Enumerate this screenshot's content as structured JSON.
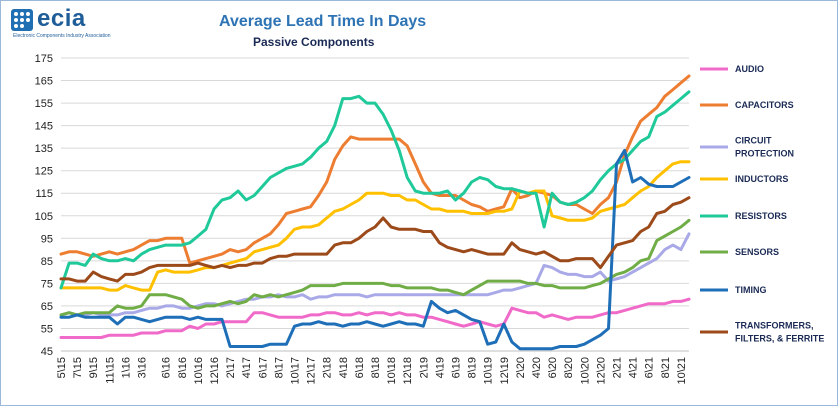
{
  "logo": {
    "name": "ecia",
    "tagline": "Electronic Components Industry Association"
  },
  "chart_data": {
    "type": "line",
    "title": "Average Lead Time In Days",
    "subtitle": "Passive Components",
    "xlabel": "",
    "ylabel": "",
    "ylim": [
      45,
      175
    ],
    "yticks": [
      45,
      55,
      65,
      75,
      85,
      95,
      105,
      115,
      125,
      135,
      145,
      155,
      165,
      175
    ],
    "grid": true,
    "legend": "right",
    "categories": [
      "5\\15",
      "6\\15",
      "7\\15",
      "8\\15",
      "9\\15",
      "10\\15",
      "11\\15",
      "12\\15",
      "1\\16",
      "2\\16",
      "3\\16",
      "4\\16",
      "5\\16",
      "6\\16",
      "7\\16",
      "8\\16",
      "9\\16",
      "10\\16",
      "11\\16",
      "12\\16",
      "1\\17",
      "2\\17",
      "3\\17",
      "4\\17",
      "5\\17",
      "6\\17",
      "7\\17",
      "8\\17",
      "9\\17",
      "10\\17",
      "11\\17",
      "12\\17",
      "1\\18",
      "2\\18",
      "3\\18",
      "4\\18",
      "5\\18",
      "6\\18",
      "7\\18",
      "8\\18",
      "9\\18",
      "10\\18",
      "11\\18",
      "12\\18",
      "1\\19",
      "2\\19",
      "3\\19",
      "4\\19",
      "5\\19",
      "6\\19",
      "7\\19",
      "8\\19",
      "9\\19",
      "10\\19",
      "11\\19",
      "12\\19",
      "1\\20",
      "2\\20",
      "3\\20",
      "4\\20",
      "5\\20",
      "6\\20",
      "7\\20",
      "8\\20",
      "9\\20",
      "10\\20",
      "11\\20",
      "12\\20",
      "1\\21",
      "2\\21",
      "3\\21",
      "4\\21",
      "5\\21",
      "6\\21",
      "7\\21",
      "8\\21",
      "9\\21",
      "10\\21",
      "11\\21"
    ],
    "xtick_labels": [
      "5\\15",
      "7\\15",
      "9\\15",
      "11\\15",
      "1\\16",
      "3\\16",
      "6\\16",
      "8\\16",
      "10\\16",
      "12\\16",
      "2\\17",
      "4\\17",
      "6\\17",
      "8\\17",
      "10\\17",
      "12\\17",
      "2\\18",
      "4\\18",
      "6\\18",
      "8\\18",
      "10\\18",
      "12\\18",
      "2\\19",
      "4\\19",
      "6\\19",
      "8\\19",
      "10\\19",
      "12\\19",
      "2\\20",
      "4\\20",
      "6\\20",
      "8\\20",
      "10\\20",
      "12\\20",
      "2\\21",
      "4\\21",
      "6\\21",
      "8\\21",
      "10\\21"
    ],
    "series": [
      {
        "name": "AUDIO",
        "color": "#f06ac9",
        "values": [
          51,
          51,
          51,
          51,
          51,
          51,
          52,
          52,
          52,
          52,
          53,
          53,
          53,
          54,
          54,
          54,
          56,
          55,
          57,
          57,
          58,
          58,
          58,
          58,
          62,
          62,
          61,
          60,
          60,
          60,
          60,
          61,
          61,
          62,
          62,
          61,
          61,
          62,
          61,
          62,
          62,
          61,
          62,
          61,
          61,
          60,
          60,
          59,
          58,
          57,
          56,
          57,
          58,
          57,
          56,
          57,
          64,
          63,
          62,
          62,
          60,
          61,
          60,
          59,
          60,
          60,
          60,
          61,
          62,
          62,
          63,
          64,
          65,
          66,
          66,
          66,
          67,
          67,
          68
        ]
      },
      {
        "name": "CAPACITORS",
        "color": "#ed7d31",
        "values": [
          88,
          89,
          89,
          88,
          87,
          88,
          89,
          88,
          89,
          90,
          92,
          94,
          94,
          95,
          95,
          95,
          84,
          85,
          86,
          87,
          88,
          90,
          89,
          90,
          93,
          95,
          97,
          101,
          106,
          107,
          108,
          109,
          114,
          120,
          130,
          136,
          140,
          139,
          139,
          139,
          139,
          139,
          139,
          136,
          128,
          120,
          115,
          114,
          114,
          114,
          112,
          110,
          109,
          107,
          108,
          109,
          117,
          113,
          114,
          116,
          115,
          114,
          111,
          110,
          110,
          108,
          106,
          110,
          113,
          120,
          132,
          140,
          147,
          150,
          153,
          158,
          161,
          164,
          167
        ]
      },
      {
        "name": "CIRCUIT PROTECTION",
        "color": "#a9a9e8",
        "values": [
          61,
          62,
          61,
          61,
          62,
          61,
          61,
          61,
          62,
          62,
          63,
          64,
          64,
          65,
          65,
          64,
          64,
          65,
          66,
          66,
          65,
          66,
          67,
          68,
          68,
          69,
          69,
          70,
          69,
          69,
          70,
          68,
          69,
          69,
          70,
          70,
          70,
          70,
          69,
          70,
          70,
          70,
          70,
          70,
          70,
          70,
          70,
          70,
          70,
          70,
          70,
          70,
          70,
          70,
          71,
          72,
          72,
          73,
          74,
          75,
          83,
          82,
          80,
          79,
          79,
          78,
          78,
          80,
          76,
          77,
          78,
          80,
          82,
          84,
          86,
          90,
          92,
          90,
          97
        ]
      },
      {
        "name": "INDUCTORS",
        "color": "#ffc000",
        "values": [
          73,
          73,
          73,
          73,
          73,
          73,
          72,
          72,
          74,
          73,
          72,
          72,
          80,
          81,
          80,
          80,
          80,
          81,
          82,
          82,
          83,
          84,
          85,
          86,
          89,
          90,
          91,
          92,
          95,
          99,
          100,
          100,
          101,
          104,
          107,
          108,
          110,
          112,
          115,
          115,
          115,
          114,
          114,
          112,
          112,
          110,
          108,
          108,
          107,
          107,
          107,
          106,
          106,
          106,
          107,
          107,
          108,
          116,
          115,
          116,
          116,
          105,
          104,
          103,
          103,
          103,
          104,
          107,
          108,
          109,
          110,
          113,
          116,
          118,
          122,
          125,
          128,
          129,
          129
        ]
      },
      {
        "name": "RESISTORS",
        "color": "#1fc99a",
        "values": [
          73,
          84,
          84,
          83,
          88,
          86,
          85,
          85,
          86,
          85,
          88,
          90,
          91,
          92,
          92,
          92,
          93,
          96,
          99,
          108,
          112,
          113,
          116,
          112,
          114,
          118,
          122,
          124,
          126,
          127,
          128,
          131,
          135,
          138,
          145,
          157,
          157,
          158,
          155,
          155,
          150,
          143,
          134,
          122,
          116,
          115,
          115,
          115,
          116,
          112,
          115,
          120,
          122,
          121,
          118,
          117,
          117,
          116,
          115,
          115,
          100,
          115,
          111,
          110,
          111,
          113,
          116,
          121,
          125,
          128,
          130,
          134,
          138,
          140,
          149,
          151,
          154,
          157,
          160
        ]
      },
      {
        "name": "SENSORS",
        "color": "#70ad47",
        "values": [
          61,
          62,
          61,
          62,
          62,
          62,
          62,
          65,
          64,
          64,
          65,
          70,
          70,
          70,
          69,
          68,
          65,
          64,
          65,
          65,
          66,
          67,
          66,
          67,
          70,
          69,
          70,
          69,
          70,
          71,
          72,
          74,
          74,
          74,
          74,
          75,
          75,
          75,
          75,
          75,
          75,
          74,
          74,
          73,
          73,
          73,
          73,
          72,
          72,
          71,
          70,
          72,
          74,
          76,
          76,
          76,
          76,
          76,
          75,
          75,
          74,
          74,
          73,
          73,
          73,
          73,
          74,
          75,
          77,
          79,
          80,
          82,
          85,
          86,
          94,
          96,
          98,
          100,
          103
        ]
      },
      {
        "name": "TIMING",
        "color": "#1f6fb8",
        "values": [
          60,
          60,
          61,
          60,
          60,
          60,
          60,
          57,
          60,
          60,
          59,
          58,
          59,
          60,
          60,
          60,
          59,
          60,
          59,
          59,
          59,
          47,
          47,
          47,
          47,
          47,
          48,
          48,
          48,
          56,
          57,
          57,
          58,
          57,
          57,
          56,
          57,
          57,
          58,
          57,
          56,
          57,
          58,
          57,
          57,
          56,
          67,
          64,
          62,
          63,
          61,
          59,
          58,
          48,
          49,
          57,
          49,
          46,
          46,
          46,
          46,
          46,
          47,
          47,
          47,
          48,
          50,
          52,
          55,
          128,
          134,
          120,
          122,
          119,
          118,
          118,
          118,
          120,
          122
        ]
      },
      {
        "name": "TRANSFORMERS, FILTERS, & FERRITE",
        "color": "#9c4a1a",
        "values": [
          77,
          77,
          76,
          76,
          80,
          78,
          77,
          76,
          79,
          79,
          80,
          82,
          83,
          83,
          83,
          83,
          83,
          84,
          83,
          82,
          83,
          82,
          83,
          83,
          84,
          84,
          86,
          87,
          87,
          88,
          88,
          88,
          88,
          88,
          92,
          93,
          93,
          95,
          98,
          100,
          104,
          100,
          99,
          99,
          99,
          98,
          98,
          93,
          91,
          90,
          89,
          90,
          89,
          88,
          88,
          88,
          93,
          90,
          89,
          88,
          89,
          87,
          85,
          85,
          86,
          86,
          86,
          82,
          87,
          92,
          93,
          94,
          98,
          100,
          106,
          107,
          110,
          111,
          113
        ]
      }
    ]
  }
}
